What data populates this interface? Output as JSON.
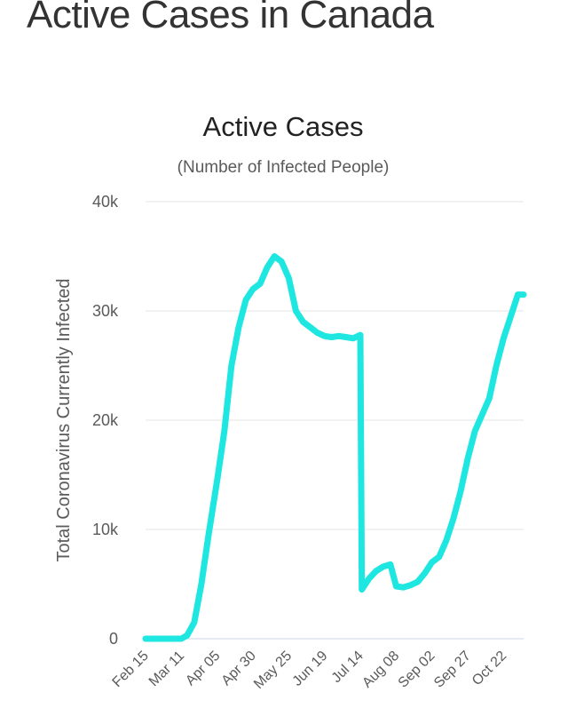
{
  "page": {
    "heading": "Active Cases in Canada"
  },
  "colors": {
    "series": "#1ee6e0",
    "grid": "#e6e6e6",
    "axis": "#ccd6eb"
  },
  "chart_data": {
    "type": "line",
    "title": "Active Cases",
    "subtitle": "(Number of Infected People)",
    "ylabel": "Total Coronavirus Currently Infected",
    "xlabel": "",
    "ylim": [
      0,
      40000
    ],
    "grid": true,
    "legend": "none",
    "yticks": [
      {
        "value": 0,
        "label": "0"
      },
      {
        "value": 10000,
        "label": "10k"
      },
      {
        "value": 20000,
        "label": "20k"
      },
      {
        "value": 30000,
        "label": "30k"
      },
      {
        "value": 40000,
        "label": "40k"
      }
    ],
    "xticks": [
      "Feb 15",
      "Mar 11",
      "Apr 05",
      "Apr 30",
      "May 25",
      "Jun 19",
      "Jul 14",
      "Aug 08",
      "Sep 02",
      "Sep 27",
      "Oct 22"
    ],
    "x": [
      "2020-02-15",
      "2020-03-01",
      "2020-03-11",
      "2020-03-15",
      "2020-03-20",
      "2020-03-25",
      "2020-03-30",
      "2020-04-05",
      "2020-04-10",
      "2020-04-15",
      "2020-04-20",
      "2020-04-25",
      "2020-04-30",
      "2020-05-05",
      "2020-05-10",
      "2020-05-15",
      "2020-05-20",
      "2020-05-25",
      "2020-05-30",
      "2020-06-04",
      "2020-06-09",
      "2020-06-14",
      "2020-06-19",
      "2020-06-24",
      "2020-06-29",
      "2020-07-04",
      "2020-07-09",
      "2020-07-14",
      "2020-07-15",
      "2020-07-20",
      "2020-07-25",
      "2020-07-30",
      "2020-08-04",
      "2020-08-08",
      "2020-08-13",
      "2020-08-18",
      "2020-08-23",
      "2020-08-28",
      "2020-09-02",
      "2020-09-07",
      "2020-09-12",
      "2020-09-17",
      "2020-09-22",
      "2020-09-27",
      "2020-10-02",
      "2020-10-07",
      "2020-10-12",
      "2020-10-17",
      "2020-10-22",
      "2020-10-27",
      "2020-11-01",
      "2020-11-05"
    ],
    "series": [
      {
        "values": [
          0,
          0,
          0,
          300,
          1500,
          5000,
          9500,
          14500,
          19000,
          25000,
          28500,
          31000,
          32000,
          32500,
          34000,
          35000,
          34500,
          33000,
          30000,
          29000,
          28500,
          28000,
          27700,
          27600,
          27700,
          27600,
          27500,
          27800,
          4500,
          5500,
          6200,
          6600,
          6800,
          4800,
          4700,
          4900,
          5200,
          6000,
          7000,
          7500,
          9000,
          11000,
          13500,
          16500,
          19000,
          20500,
          22000,
          25000,
          27500,
          29500,
          31500,
          31500
        ]
      }
    ]
  }
}
